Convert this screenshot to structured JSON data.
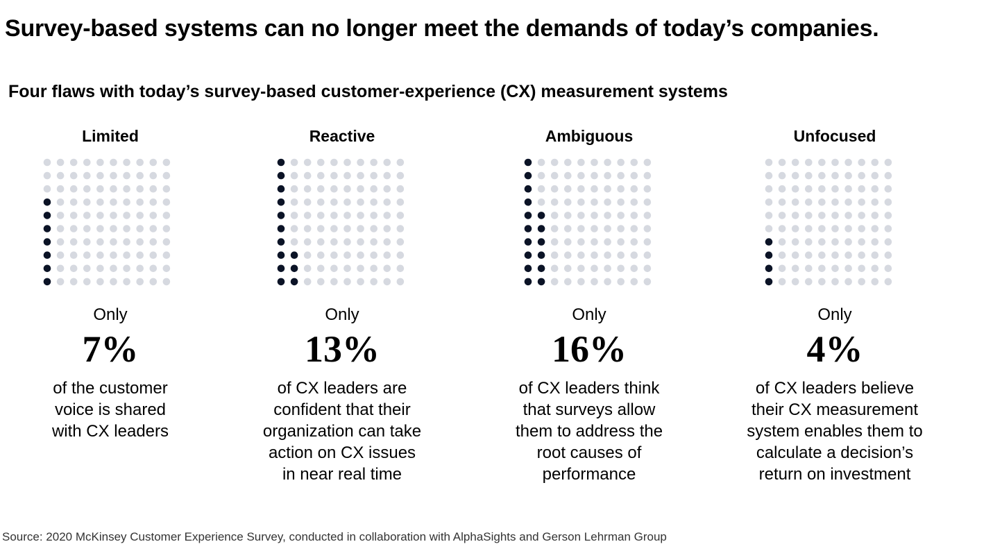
{
  "title": "Survey-based systems can no longer meet the demands of today’s companies.",
  "subtitle": "Four flaws with today’s survey-based customer-experience (CX) measurement systems",
  "colors": {
    "filled": "#0b1326",
    "empty": "#d6d9e0"
  },
  "chart_data": {
    "type": "waffle",
    "grid": {
      "rows": 10,
      "cols": 10
    },
    "panels": [
      {
        "heading": "Limited",
        "prefix": "Only",
        "value": 7,
        "value_label": "7%",
        "description": [
          "of the customer",
          "voice is shared",
          "with CX leaders"
        ]
      },
      {
        "heading": "Reactive",
        "prefix": "Only",
        "value": 13,
        "value_label": "13%",
        "description": [
          "of CX leaders are",
          "confident that their",
          "organization can take",
          "action on CX issues",
          "in near real time"
        ]
      },
      {
        "heading": "Ambiguous",
        "prefix": "Only",
        "value": 16,
        "value_label": "16%",
        "description": [
          "of CX leaders think",
          "that surveys allow",
          "them to address the",
          "root causes of",
          "performance"
        ]
      },
      {
        "heading": "Unfocused",
        "prefix": "Only",
        "value": 4,
        "value_label": "4%",
        "description": [
          "of CX leaders believe",
          "their CX measurement",
          "system enables them to",
          "calculate a decision’s",
          "return on investment"
        ]
      }
    ]
  },
  "source": "Source: 2020 McKinsey Customer Experience Survey, conducted in collaboration with AlphaSights and Gerson Lehrman Group"
}
